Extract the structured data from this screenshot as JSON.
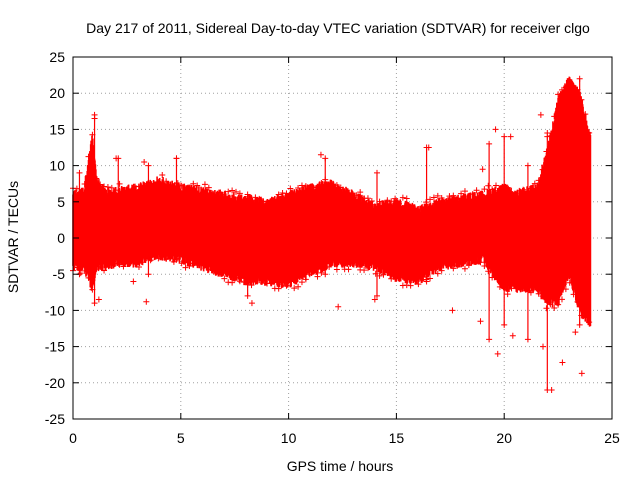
{
  "chart_data": {
    "type": "scatter",
    "title": "Day 217 of 2011, Sidereal Day-to-day VTEC variation (SDTVAR) for receiver clgo",
    "xlabel": "GPS time / hours",
    "ylabel": "SDTVAR / TECUs",
    "xlim": [
      0,
      25
    ],
    "ylim": [
      -25,
      25
    ],
    "xticks": [
      "0",
      "5",
      "10",
      "15",
      "20",
      "25"
    ],
    "yticks": [
      "25",
      "20",
      "15",
      "10",
      "5",
      "0",
      "-5",
      "-10",
      "-15",
      "-20",
      "-25"
    ],
    "grid": true,
    "marker": "+",
    "color": "#ff0000",
    "series": [
      {
        "name": "SDTVAR",
        "envelope": {
          "x": [
            0,
            0.5,
            0.9,
            1.1,
            1.5,
            2,
            3,
            4,
            5,
            6,
            7,
            8,
            9,
            10,
            11,
            12,
            13,
            14,
            15,
            16,
            17,
            18,
            19,
            19.5,
            20,
            20.5,
            21,
            21.5,
            22,
            22.5,
            23,
            23.5,
            24
          ],
          "upper": [
            6,
            6.5,
            14,
            8,
            6.5,
            6.5,
            7,
            8,
            7,
            6.5,
            6,
            5.5,
            5,
            6,
            7,
            7.5,
            6,
            4.5,
            5,
            4,
            5,
            5.5,
            6,
            6.5,
            7,
            6,
            6.5,
            7,
            12,
            19,
            22,
            20,
            14
          ],
          "lower": [
            -4,
            -4,
            -7,
            -4,
            -4,
            -3.5,
            -3.5,
            -2.5,
            -3,
            -4,
            -5,
            -6,
            -6,
            -6.5,
            -5,
            -3.5,
            -3.5,
            -4,
            -5.5,
            -6,
            -4,
            -3.5,
            -3,
            -5,
            -7,
            -7,
            -7,
            -7,
            -9,
            -9,
            -5,
            -10,
            -12
          ]
        },
        "outliers": [
          {
            "x": 1.0,
            "y": 16.5
          },
          {
            "x": 2.0,
            "y": 11
          },
          {
            "x": 3.3,
            "y": 10.5
          },
          {
            "x": 4.8,
            "y": 11
          },
          {
            "x": 11.5,
            "y": 11.5
          },
          {
            "x": 16.5,
            "y": 12.5
          },
          {
            "x": 19.6,
            "y": 15
          },
          {
            "x": 19.0,
            "y": 9.5
          },
          {
            "x": 20.3,
            "y": 14
          },
          {
            "x": 21.7,
            "y": 17
          },
          {
            "x": 22.0,
            "y": 14.5
          },
          {
            "x": 1.2,
            "y": -8.5
          },
          {
            "x": 3.4,
            "y": -8.8
          },
          {
            "x": 12.3,
            "y": -9.5
          },
          {
            "x": 17.6,
            "y": -10
          },
          {
            "x": 18.9,
            "y": -11.5
          },
          {
            "x": 19.7,
            "y": -16
          },
          {
            "x": 20.4,
            "y": -13.5
          },
          {
            "x": 21.8,
            "y": -15
          },
          {
            "x": 22.2,
            "y": -21
          },
          {
            "x": 22.7,
            "y": -17.2
          },
          {
            "x": 23.6,
            "y": -18.7
          },
          {
            "x": 23.3,
            "y": -13
          },
          {
            "x": 2.8,
            "y": -6
          },
          {
            "x": 8.3,
            "y": -9
          },
          {
            "x": 14.0,
            "y": -8.5
          }
        ],
        "spikes": [
          {
            "x": 0.3,
            "lo": -5,
            "hi": 9
          },
          {
            "x": 1.0,
            "lo": -9,
            "hi": 17
          },
          {
            "x": 2.1,
            "lo": -3,
            "hi": 11
          },
          {
            "x": 3.5,
            "lo": -5,
            "hi": 10
          },
          {
            "x": 4.8,
            "lo": -3,
            "hi": 11
          },
          {
            "x": 8.1,
            "lo": -8,
            "hi": 6
          },
          {
            "x": 11.7,
            "lo": -5,
            "hi": 11
          },
          {
            "x": 14.1,
            "lo": -8,
            "hi": 9
          },
          {
            "x": 16.4,
            "lo": -6,
            "hi": 12.5
          },
          {
            "x": 19.3,
            "lo": -14,
            "hi": 13
          },
          {
            "x": 20.0,
            "lo": -12,
            "hi": 14
          },
          {
            "x": 21.1,
            "lo": -14,
            "hi": 10
          },
          {
            "x": 22.0,
            "lo": -21,
            "hi": 14
          },
          {
            "x": 23.5,
            "lo": -12,
            "hi": 22
          }
        ]
      }
    ]
  }
}
